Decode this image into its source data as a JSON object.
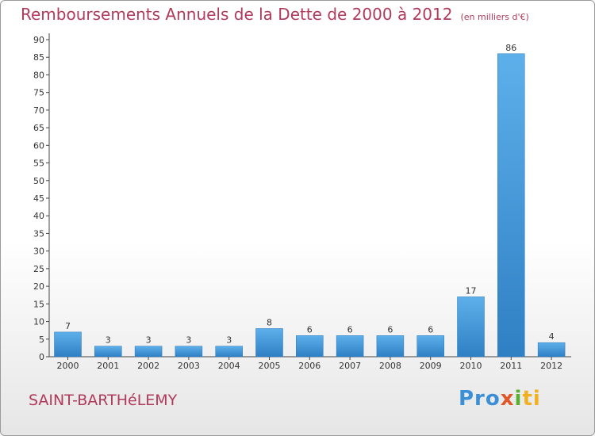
{
  "header": {
    "title": "Remboursements Annuels de la Dette de 2000 à 2012",
    "unit": "(en milliers d'€)"
  },
  "footer": {
    "town": "SAINT-BARTHéLEMY",
    "logo": [
      "Pro",
      "x",
      "i",
      "ti"
    ]
  },
  "chart_data": {
    "type": "bar",
    "title": "Remboursements Annuels de la Dette de 2000 à 2012",
    "categories": [
      "2000",
      "2001",
      "2002",
      "2003",
      "2004",
      "2005",
      "2006",
      "2007",
      "2008",
      "2009",
      "2010",
      "2011",
      "2012"
    ],
    "values": [
      7,
      3,
      3,
      3,
      3,
      8,
      6,
      6,
      6,
      6,
      17,
      86,
      4
    ],
    "ylim": [
      0,
      90
    ],
    "yticks": [
      0,
      5,
      10,
      15,
      20,
      25,
      30,
      35,
      40,
      45,
      50,
      55,
      60,
      65,
      70,
      75,
      80,
      85,
      90
    ],
    "grid": false,
    "bar_color": "#4a9fe0"
  }
}
